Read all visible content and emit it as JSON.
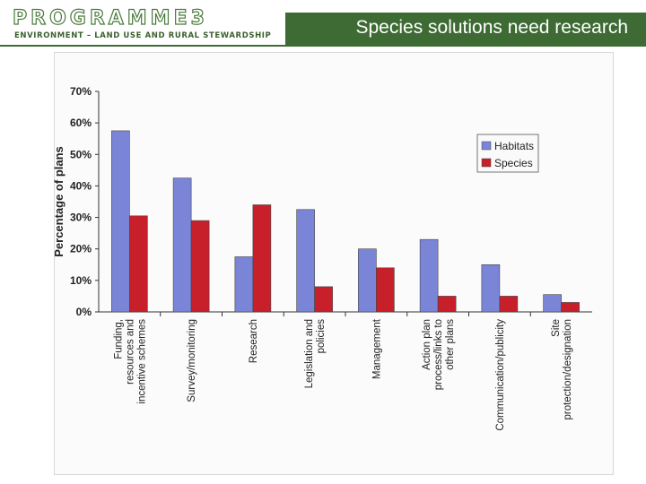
{
  "header": {
    "logo_word": "PROGRAMME3",
    "logo_subtitle": "ENVIRONMENT – LAND USE AND RURAL STEWARDSHIP",
    "title": "Species solutions need research"
  },
  "colors": {
    "accent": "#3e6b34",
    "habitats": "#7b85d8",
    "species": "#c8202a"
  },
  "chart_data": {
    "type": "bar",
    "title": "",
    "xlabel": "",
    "ylabel": "Percentage of plans",
    "ylim": [
      0,
      70
    ],
    "yticks": [
      "0%",
      "10%",
      "20%",
      "30%",
      "40%",
      "50%",
      "60%",
      "70%"
    ],
    "grid": false,
    "legend_position": "top-right",
    "categories": [
      "Funding, resources and incentive schemes",
      "Survey/monitoring",
      "Research",
      "Legislation and policies",
      "Management",
      "Action plan process/links to other plans",
      "Communication/publicity",
      "Site protection/designation"
    ],
    "series": [
      {
        "name": "Habitats",
        "values": [
          57.5,
          42.5,
          17.5,
          32.5,
          20,
          23,
          15,
          5.5
        ]
      },
      {
        "name": "Species",
        "values": [
          30.5,
          29,
          34,
          8,
          14,
          5,
          5,
          3
        ]
      }
    ]
  }
}
